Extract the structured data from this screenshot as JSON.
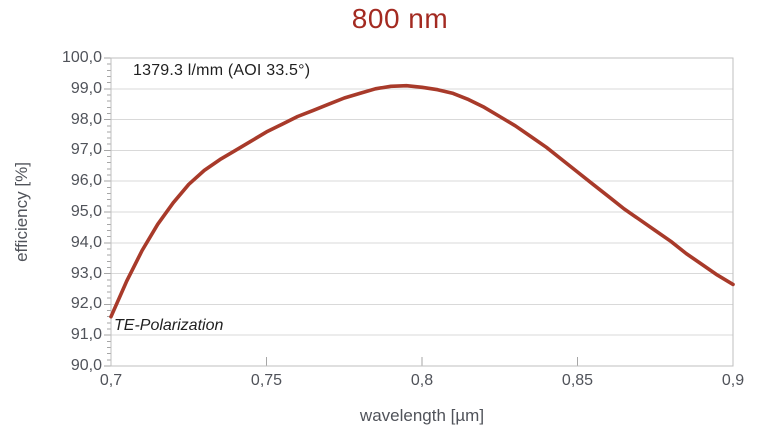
{
  "chart_data": {
    "type": "line",
    "title": "800 nm",
    "xlabel": "wavelength [µm]",
    "ylabel": "efficiency [%]",
    "annotation": "1379.3 l/mm (AOI 33.5°)",
    "series_label": "TE-Polarization",
    "xlim": [
      0.7,
      0.9
    ],
    "ylim": [
      90,
      100
    ],
    "grid": "horizontal-major",
    "legend": "none",
    "y_minor_step": 0.2,
    "xticks": [
      {
        "value": 0.7,
        "label": "0,7"
      },
      {
        "value": 0.75,
        "label": "0,75"
      },
      {
        "value": 0.8,
        "label": "0,8"
      },
      {
        "value": 0.85,
        "label": "0,85"
      },
      {
        "value": 0.9,
        "label": "0,9"
      }
    ],
    "yticks": [
      {
        "value": 100,
        "label": "100,0"
      },
      {
        "value": 99,
        "label": "99,0"
      },
      {
        "value": 98,
        "label": "98,0"
      },
      {
        "value": 97,
        "label": "97,0"
      },
      {
        "value": 96,
        "label": "96,0"
      },
      {
        "value": 95,
        "label": "95,0"
      },
      {
        "value": 94,
        "label": "94,0"
      },
      {
        "value": 93,
        "label": "93,0"
      },
      {
        "value": 92,
        "label": "92,0"
      },
      {
        "value": 91,
        "label": "91,0"
      },
      {
        "value": 90,
        "label": "90,0"
      }
    ],
    "series": [
      {
        "name": "TE-Polarization",
        "color": "#A83A2A",
        "points": [
          [
            0.7,
            91.6
          ],
          [
            0.705,
            92.75
          ],
          [
            0.71,
            93.75
          ],
          [
            0.715,
            94.6
          ],
          [
            0.72,
            95.3
          ],
          [
            0.725,
            95.9
          ],
          [
            0.73,
            96.35
          ],
          [
            0.735,
            96.7
          ],
          [
            0.74,
            97.0
          ],
          [
            0.745,
            97.3
          ],
          [
            0.75,
            97.6
          ],
          [
            0.755,
            97.85
          ],
          [
            0.76,
            98.1
          ],
          [
            0.765,
            98.3
          ],
          [
            0.77,
            98.5
          ],
          [
            0.775,
            98.7
          ],
          [
            0.78,
            98.85
          ],
          [
            0.785,
            99.0
          ],
          [
            0.79,
            99.08
          ],
          [
            0.795,
            99.1
          ],
          [
            0.8,
            99.05
          ],
          [
            0.805,
            98.97
          ],
          [
            0.81,
            98.85
          ],
          [
            0.815,
            98.65
          ],
          [
            0.82,
            98.4
          ],
          [
            0.825,
            98.1
          ],
          [
            0.83,
            97.8
          ],
          [
            0.835,
            97.45
          ],
          [
            0.84,
            97.1
          ],
          [
            0.845,
            96.7
          ],
          [
            0.85,
            96.3
          ],
          [
            0.855,
            95.9
          ],
          [
            0.86,
            95.5
          ],
          [
            0.865,
            95.1
          ],
          [
            0.87,
            94.75
          ],
          [
            0.875,
            94.4
          ],
          [
            0.88,
            94.05
          ],
          [
            0.885,
            93.65
          ],
          [
            0.89,
            93.3
          ],
          [
            0.895,
            92.95
          ],
          [
            0.9,
            92.65
          ]
        ]
      }
    ]
  },
  "colors": {
    "title": "#A32A21",
    "line": "#A83A2A",
    "axis_text": "#50535a",
    "annotation_text": "#1f1f1f",
    "gridline": "#d9d9d9",
    "border": "#bfbfbf",
    "tick": "#a6a6a6",
    "background": "#ffffff"
  }
}
